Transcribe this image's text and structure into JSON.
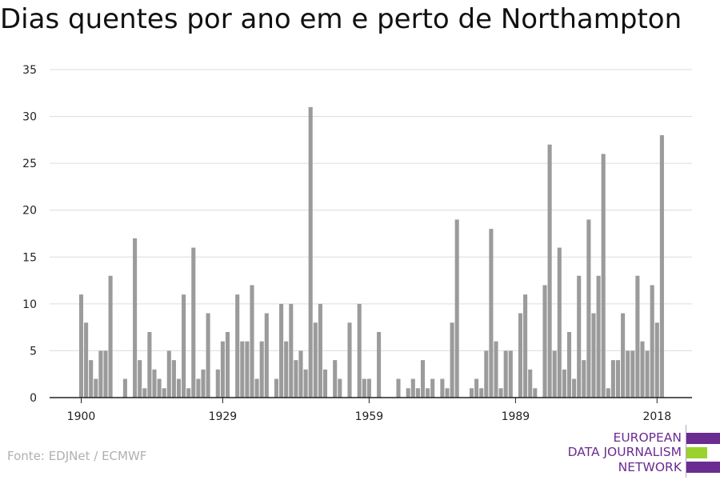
{
  "chart_data": {
    "type": "bar",
    "title": "Dias quentes por ano em e perto de Northampton",
    "xlabel": "",
    "ylabel": "",
    "x_start": 1900,
    "x_ticks": [
      "1900",
      "1929",
      "1959",
      "1989",
      "2018"
    ],
    "y_ticks": [
      "0",
      "5",
      "10",
      "15",
      "20",
      "25",
      "30",
      "35"
    ],
    "ylim": [
      0,
      35
    ],
    "grid": true,
    "bar_color": "#9b9b9b",
    "values": [
      11,
      8,
      4,
      2,
      5,
      5,
      13,
      0,
      0,
      2,
      0,
      17,
      4,
      1,
      7,
      3,
      2,
      1,
      5,
      4,
      2,
      11,
      1,
      16,
      2,
      3,
      9,
      0,
      3,
      6,
      7,
      0,
      11,
      6,
      6,
      12,
      2,
      6,
      9,
      0,
      2,
      10,
      6,
      10,
      4,
      5,
      3,
      31,
      8,
      10,
      3,
      0,
      4,
      2,
      0,
      8,
      0,
      10,
      2,
      2,
      0,
      7,
      0,
      0,
      0,
      2,
      0,
      1,
      2,
      1,
      4,
      1,
      2,
      0,
      2,
      1,
      8,
      19,
      0,
      0,
      1,
      2,
      1,
      5,
      18,
      6,
      1,
      5,
      5,
      0,
      9,
      11,
      3,
      1,
      0,
      12,
      27,
      5,
      16,
      3,
      7,
      2,
      13,
      4,
      19,
      9,
      13,
      26,
      1,
      4,
      4,
      9,
      5,
      5,
      13,
      6,
      5,
      12,
      8,
      28
    ]
  },
  "footer": {
    "source": "Fonte: EDJNet / ECMWF"
  },
  "logo": {
    "line1": "EUROPEAN",
    "line2": "DATA JOURNALISM",
    "line3": "NETWORK",
    "purple": "#6a2c91",
    "green": "#9bd22d"
  }
}
